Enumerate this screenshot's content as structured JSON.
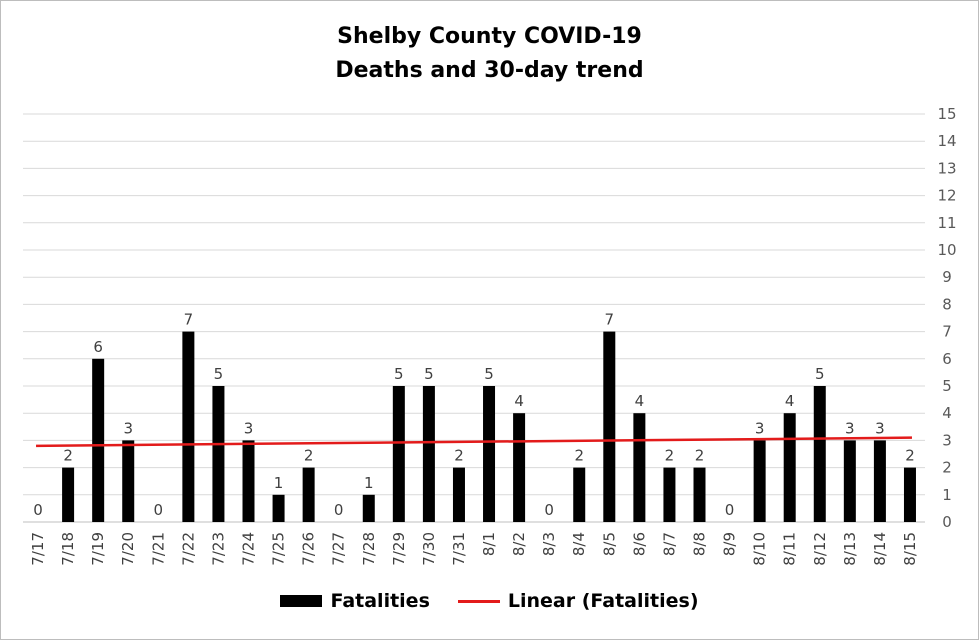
{
  "chart_data": {
    "type": "bar",
    "title_lines": [
      "Shelby County COVID-19",
      "Deaths and 30-day trend"
    ],
    "categories": [
      "7/17",
      "7/18",
      "7/19",
      "7/20",
      "7/21",
      "7/22",
      "7/23",
      "7/24",
      "7/25",
      "7/26",
      "7/27",
      "7/28",
      "7/29",
      "7/30",
      "7/31",
      "8/1",
      "8/2",
      "8/3",
      "8/4",
      "8/5",
      "8/6",
      "8/7",
      "8/8",
      "8/9",
      "8/10",
      "8/11",
      "8/12",
      "8/13",
      "8/14",
      "8/15"
    ],
    "series": [
      {
        "name": "Fatalities",
        "color": "#000000",
        "values": [
          0,
          2,
          6,
          3,
          0,
          7,
          5,
          3,
          1,
          2,
          0,
          1,
          5,
          5,
          2,
          5,
          4,
          0,
          2,
          7,
          4,
          2,
          2,
          0,
          3,
          4,
          5,
          3,
          3,
          2
        ]
      }
    ],
    "trendline": {
      "name": "Linear (Fatalities)",
      "color": "#e31b1b",
      "start": 2.8,
      "end": 3.1
    },
    "y_ticks": [
      "0",
      "1",
      "2",
      "3",
      "4",
      "5",
      "6",
      "7",
      "8",
      "9",
      "10",
      "11",
      "12",
      "13",
      "14",
      "15"
    ],
    "ylim": [
      0,
      15
    ],
    "y_axis_side": "right",
    "grid": true,
    "legend_position": "bottom"
  }
}
